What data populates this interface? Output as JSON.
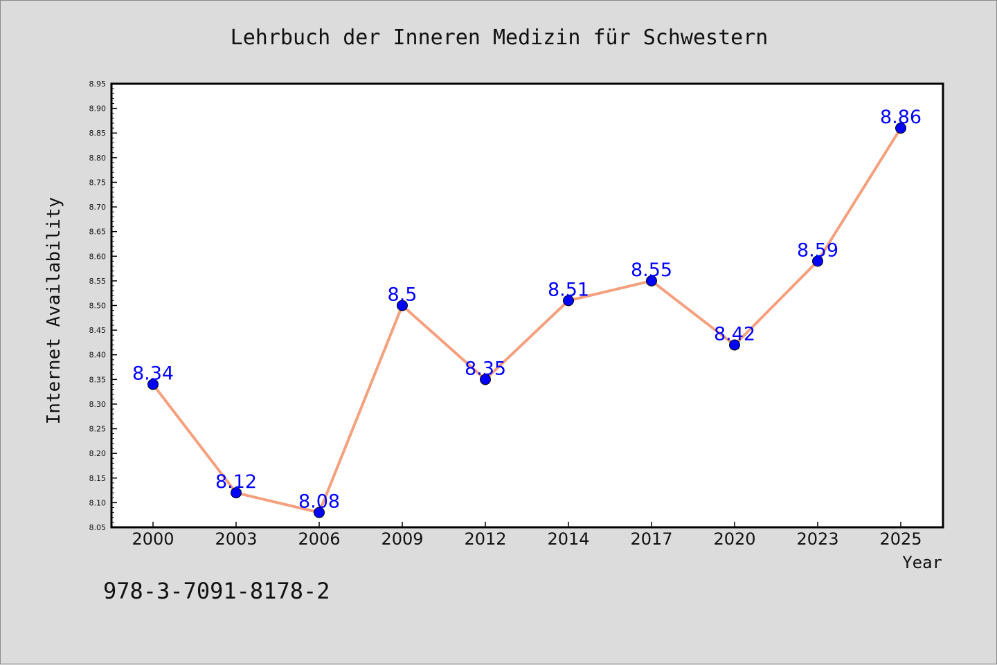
{
  "chart_data": {
    "type": "line",
    "title": "Lehrbuch der Inneren Medizin für Schwestern",
    "xlabel": "Year",
    "ylabel": "Internet Availability",
    "categories": [
      "2000",
      "2003",
      "2006",
      "2009",
      "2012",
      "2014",
      "2017",
      "2020",
      "2023",
      "2025"
    ],
    "series": [
      {
        "values": [
          8.34,
          8.12,
          8.08,
          8.5,
          8.35,
          8.51,
          8.55,
          8.42,
          8.59,
          8.86
        ],
        "data_labels": [
          "8.34",
          "8.12",
          "8.08",
          "8.5",
          "8.35",
          "8.51",
          "8.55",
          "8.42",
          "8.59",
          "8.86"
        ]
      }
    ],
    "ylim": [
      8.05,
      8.95
    ],
    "yticks": [
      "8.05",
      "8.10",
      "8.15",
      "8.20",
      "8.25",
      "8.30",
      "8.35",
      "8.40",
      "8.45",
      "8.50",
      "8.55",
      "8.60",
      "8.65",
      "8.70",
      "8.75",
      "8.80",
      "8.85",
      "8.90",
      "8.95"
    ],
    "grid": false,
    "colors": {
      "line": "#f4a07e",
      "marker": "#0000ff",
      "data_label": "#0000ff",
      "background": "#dcdcdc",
      "plot_background": "#ffffff"
    }
  },
  "footer": {
    "isbn": "978-3-7091-8178-2"
  }
}
